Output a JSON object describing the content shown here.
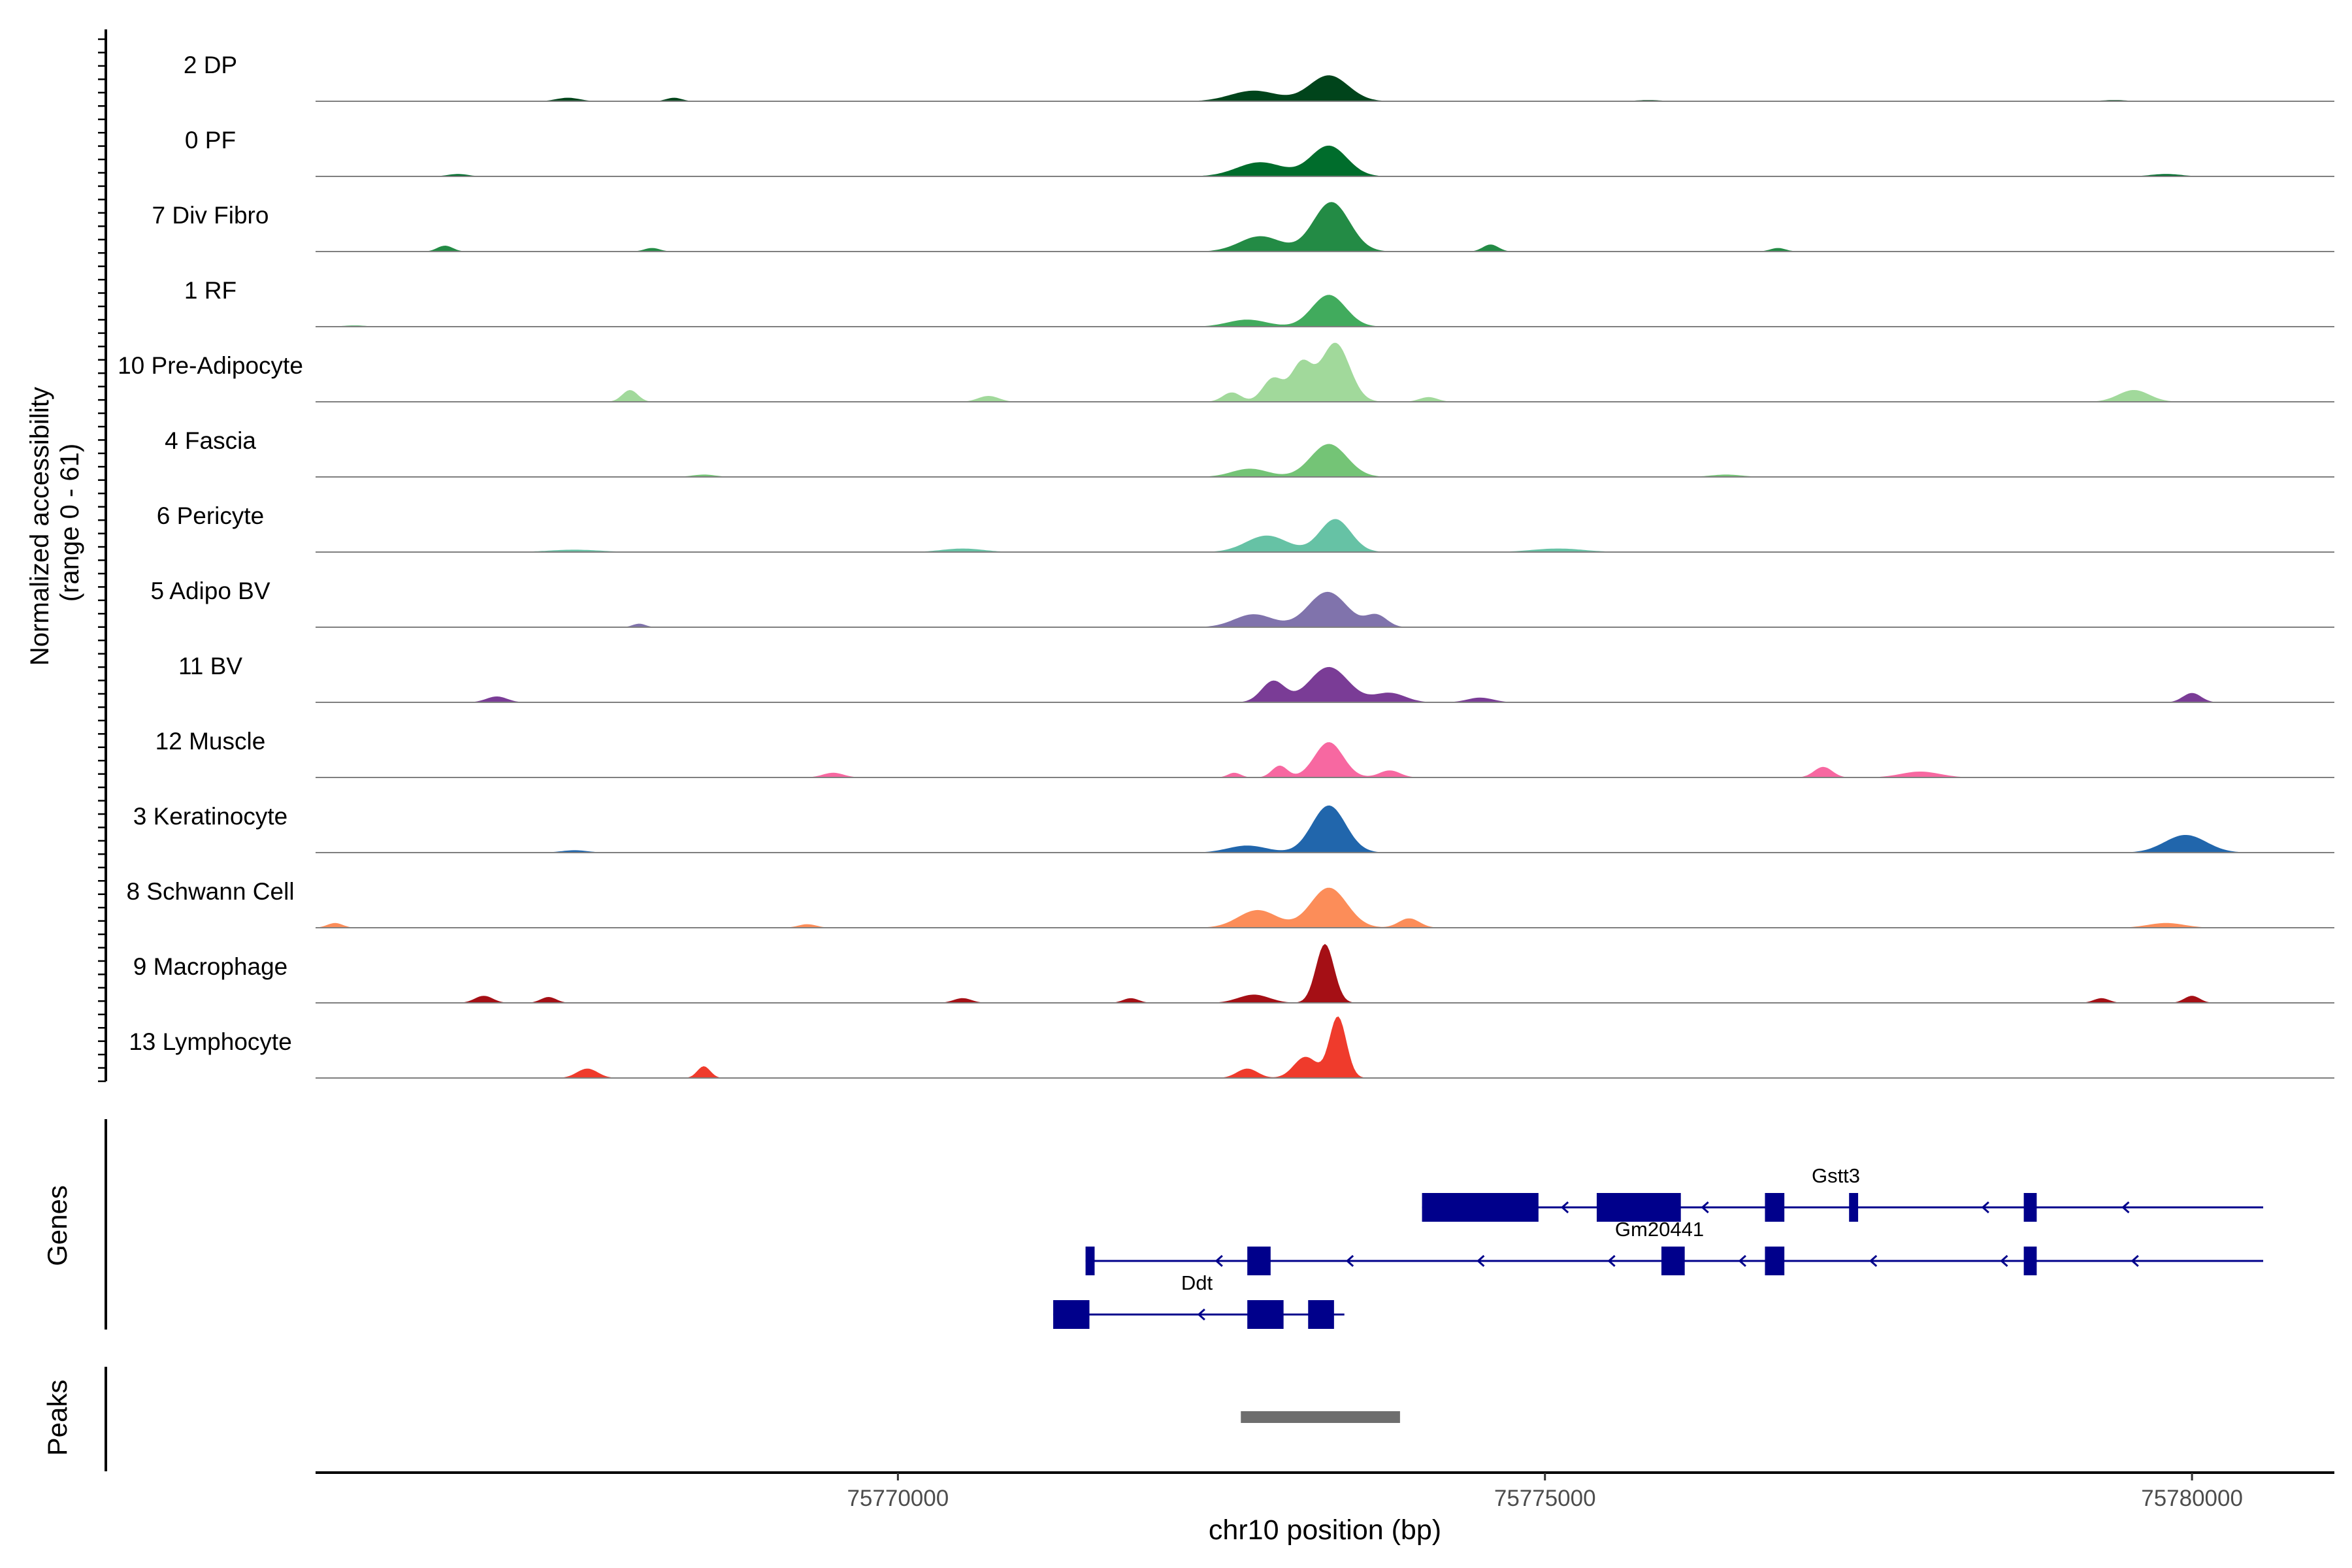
{
  "chart_data": {
    "type": "area",
    "ylabel_line1": "Normalized accessibility",
    "ylabel_line2": "(range 0 - 61)",
    "yrange": [
      0,
      61
    ],
    "xlabel": "chr10 position (bp)",
    "xlim": [
      75765500,
      75781100
    ],
    "xticks": [
      75770000,
      75775000,
      75780000
    ],
    "xtick_labels": [
      "75770000",
      "75775000",
      "75780000"
    ],
    "tracks": [
      {
        "name": "2 DP",
        "color": "#00441b",
        "peaks": [
          [
            75773330,
            22,
            150
          ],
          [
            75772750,
            9,
            180
          ],
          [
            75767450,
            3,
            90
          ],
          [
            75768270,
            3,
            60
          ],
          [
            75775800,
            1,
            100
          ],
          [
            75779400,
            1,
            100
          ]
        ]
      },
      {
        "name": "0 PF",
        "color": "#006d2c",
        "peaks": [
          [
            75773330,
            26,
            140
          ],
          [
            75772800,
            12,
            180
          ],
          [
            75779800,
            2,
            120
          ],
          [
            75766600,
            2,
            80
          ]
        ]
      },
      {
        "name": "7 Div Fibro",
        "color": "#238b45",
        "peaks": [
          [
            75773350,
            42,
            140
          ],
          [
            75772800,
            13,
            160
          ],
          [
            75766500,
            5,
            60
          ],
          [
            75768100,
            3,
            60
          ],
          [
            75774580,
            6,
            60
          ],
          [
            75776800,
            3,
            60
          ]
        ]
      },
      {
        "name": "1 RF",
        "color": "#41ab5d",
        "peaks": [
          [
            75773330,
            27,
            130
          ],
          [
            75772700,
            6,
            150
          ],
          [
            75765800,
            1,
            90
          ]
        ]
      },
      {
        "name": "10 Pre-Adipocyte",
        "color": "#a1d99b",
        "peaks": [
          [
            75773380,
            50,
            110
          ],
          [
            75773120,
            32,
            80
          ],
          [
            75772900,
            20,
            80
          ],
          [
            75767930,
            10,
            60
          ],
          [
            75779550,
            10,
            120
          ],
          [
            75770700,
            5,
            80
          ],
          [
            75772580,
            8,
            70
          ],
          [
            75774100,
            4,
            70
          ]
        ]
      },
      {
        "name": "4 Fascia",
        "color": "#74c476",
        "peaks": [
          [
            75773330,
            28,
            140
          ],
          [
            75772720,
            7,
            140
          ],
          [
            75776400,
            2,
            120
          ],
          [
            75768500,
            2,
            90
          ]
        ]
      },
      {
        "name": "6 Pericyte",
        "color": "#66c2a5",
        "peaks": [
          [
            75773380,
            28,
            120
          ],
          [
            75772850,
            14,
            160
          ],
          [
            75775100,
            3,
            200
          ],
          [
            75770500,
            3,
            160
          ],
          [
            75767500,
            2,
            200
          ]
        ]
      },
      {
        "name": "5 Adipo BV",
        "color": "#8073ac",
        "peaks": [
          [
            75773320,
            30,
            150
          ],
          [
            75772750,
            11,
            150
          ],
          [
            75773700,
            10,
            80
          ],
          [
            75768000,
            3,
            50
          ]
        ]
      },
      {
        "name": "11 BV",
        "color": "#7a3c96",
        "peaks": [
          [
            75773330,
            30,
            150
          ],
          [
            75772900,
            18,
            90
          ],
          [
            75773800,
            8,
            120
          ],
          [
            75766900,
            5,
            80
          ],
          [
            75780000,
            8,
            70
          ],
          [
            75774500,
            4,
            100
          ]
        ]
      },
      {
        "name": "12 Muscle",
        "color": "#f768a1",
        "peaks": [
          [
            75773330,
            30,
            110
          ],
          [
            75772950,
            10,
            60
          ],
          [
            75773800,
            6,
            80
          ],
          [
            75777150,
            9,
            70
          ],
          [
            75777900,
            5,
            150
          ],
          [
            75769500,
            4,
            80
          ],
          [
            75772600,
            4,
            50
          ]
        ]
      },
      {
        "name": "3 Keratinocyte",
        "color": "#2166ac",
        "peaks": [
          [
            75773330,
            40,
            130
          ],
          [
            75772700,
            6,
            150
          ],
          [
            75779950,
            15,
            160
          ],
          [
            75767500,
            2,
            100
          ]
        ]
      },
      {
        "name": "8 Schwann Cell",
        "color": "#fc8d59",
        "peaks": [
          [
            75773330,
            34,
            140
          ],
          [
            75772780,
            15,
            150
          ],
          [
            75773950,
            8,
            80
          ],
          [
            75779800,
            4,
            140
          ],
          [
            75765650,
            4,
            60
          ],
          [
            75769300,
            3,
            70
          ]
        ]
      },
      {
        "name": "9 Macrophage",
        "color": "#a50f15",
        "peaks": [
          [
            75773300,
            50,
            70
          ],
          [
            75772750,
            7,
            120
          ],
          [
            75766800,
            6,
            70
          ],
          [
            75780000,
            6,
            60
          ],
          [
            75779300,
            4,
            60
          ],
          [
            75770500,
            4,
            70
          ],
          [
            75767300,
            5,
            60
          ],
          [
            75771800,
            4,
            60
          ]
        ]
      },
      {
        "name": "13 Lymphocyte",
        "color": "#ef3b2c",
        "peaks": [
          [
            75773400,
            52,
            65
          ],
          [
            75773150,
            18,
            90
          ],
          [
            75772700,
            8,
            80
          ],
          [
            75767600,
            8,
            80
          ],
          [
            75768500,
            10,
            50
          ]
        ]
      }
    ],
    "genes_label": "Genes",
    "genes": [
      {
        "name": "Gstt3",
        "row": 0,
        "start": 75774050,
        "end": 75780550,
        "strand": "-",
        "exons": [
          [
            75774050,
            75774950
          ],
          [
            75775400,
            75776050
          ],
          [
            75776700,
            75776850
          ],
          [
            75777350,
            75777420
          ],
          [
            75778700,
            75778800
          ]
        ]
      },
      {
        "name": "Gm20441",
        "row": 1,
        "start": 75771450,
        "end": 75780550,
        "strand": "-",
        "exons": [
          [
            75771450,
            75771520
          ],
          [
            75772700,
            75772880
          ],
          [
            75775900,
            75776080
          ],
          [
            75776700,
            75776850
          ],
          [
            75778700,
            75778800
          ]
        ]
      },
      {
        "name": "Ddt",
        "row": 2,
        "start": 75771200,
        "end": 75773450,
        "strand": "-",
        "exons": [
          [
            75771200,
            75771480
          ],
          [
            75772700,
            75772980
          ],
          [
            75773170,
            75773370
          ]
        ]
      }
    ],
    "peaks_label": "Peaks",
    "peak_regions": [
      [
        75772650,
        75773880
      ]
    ]
  }
}
